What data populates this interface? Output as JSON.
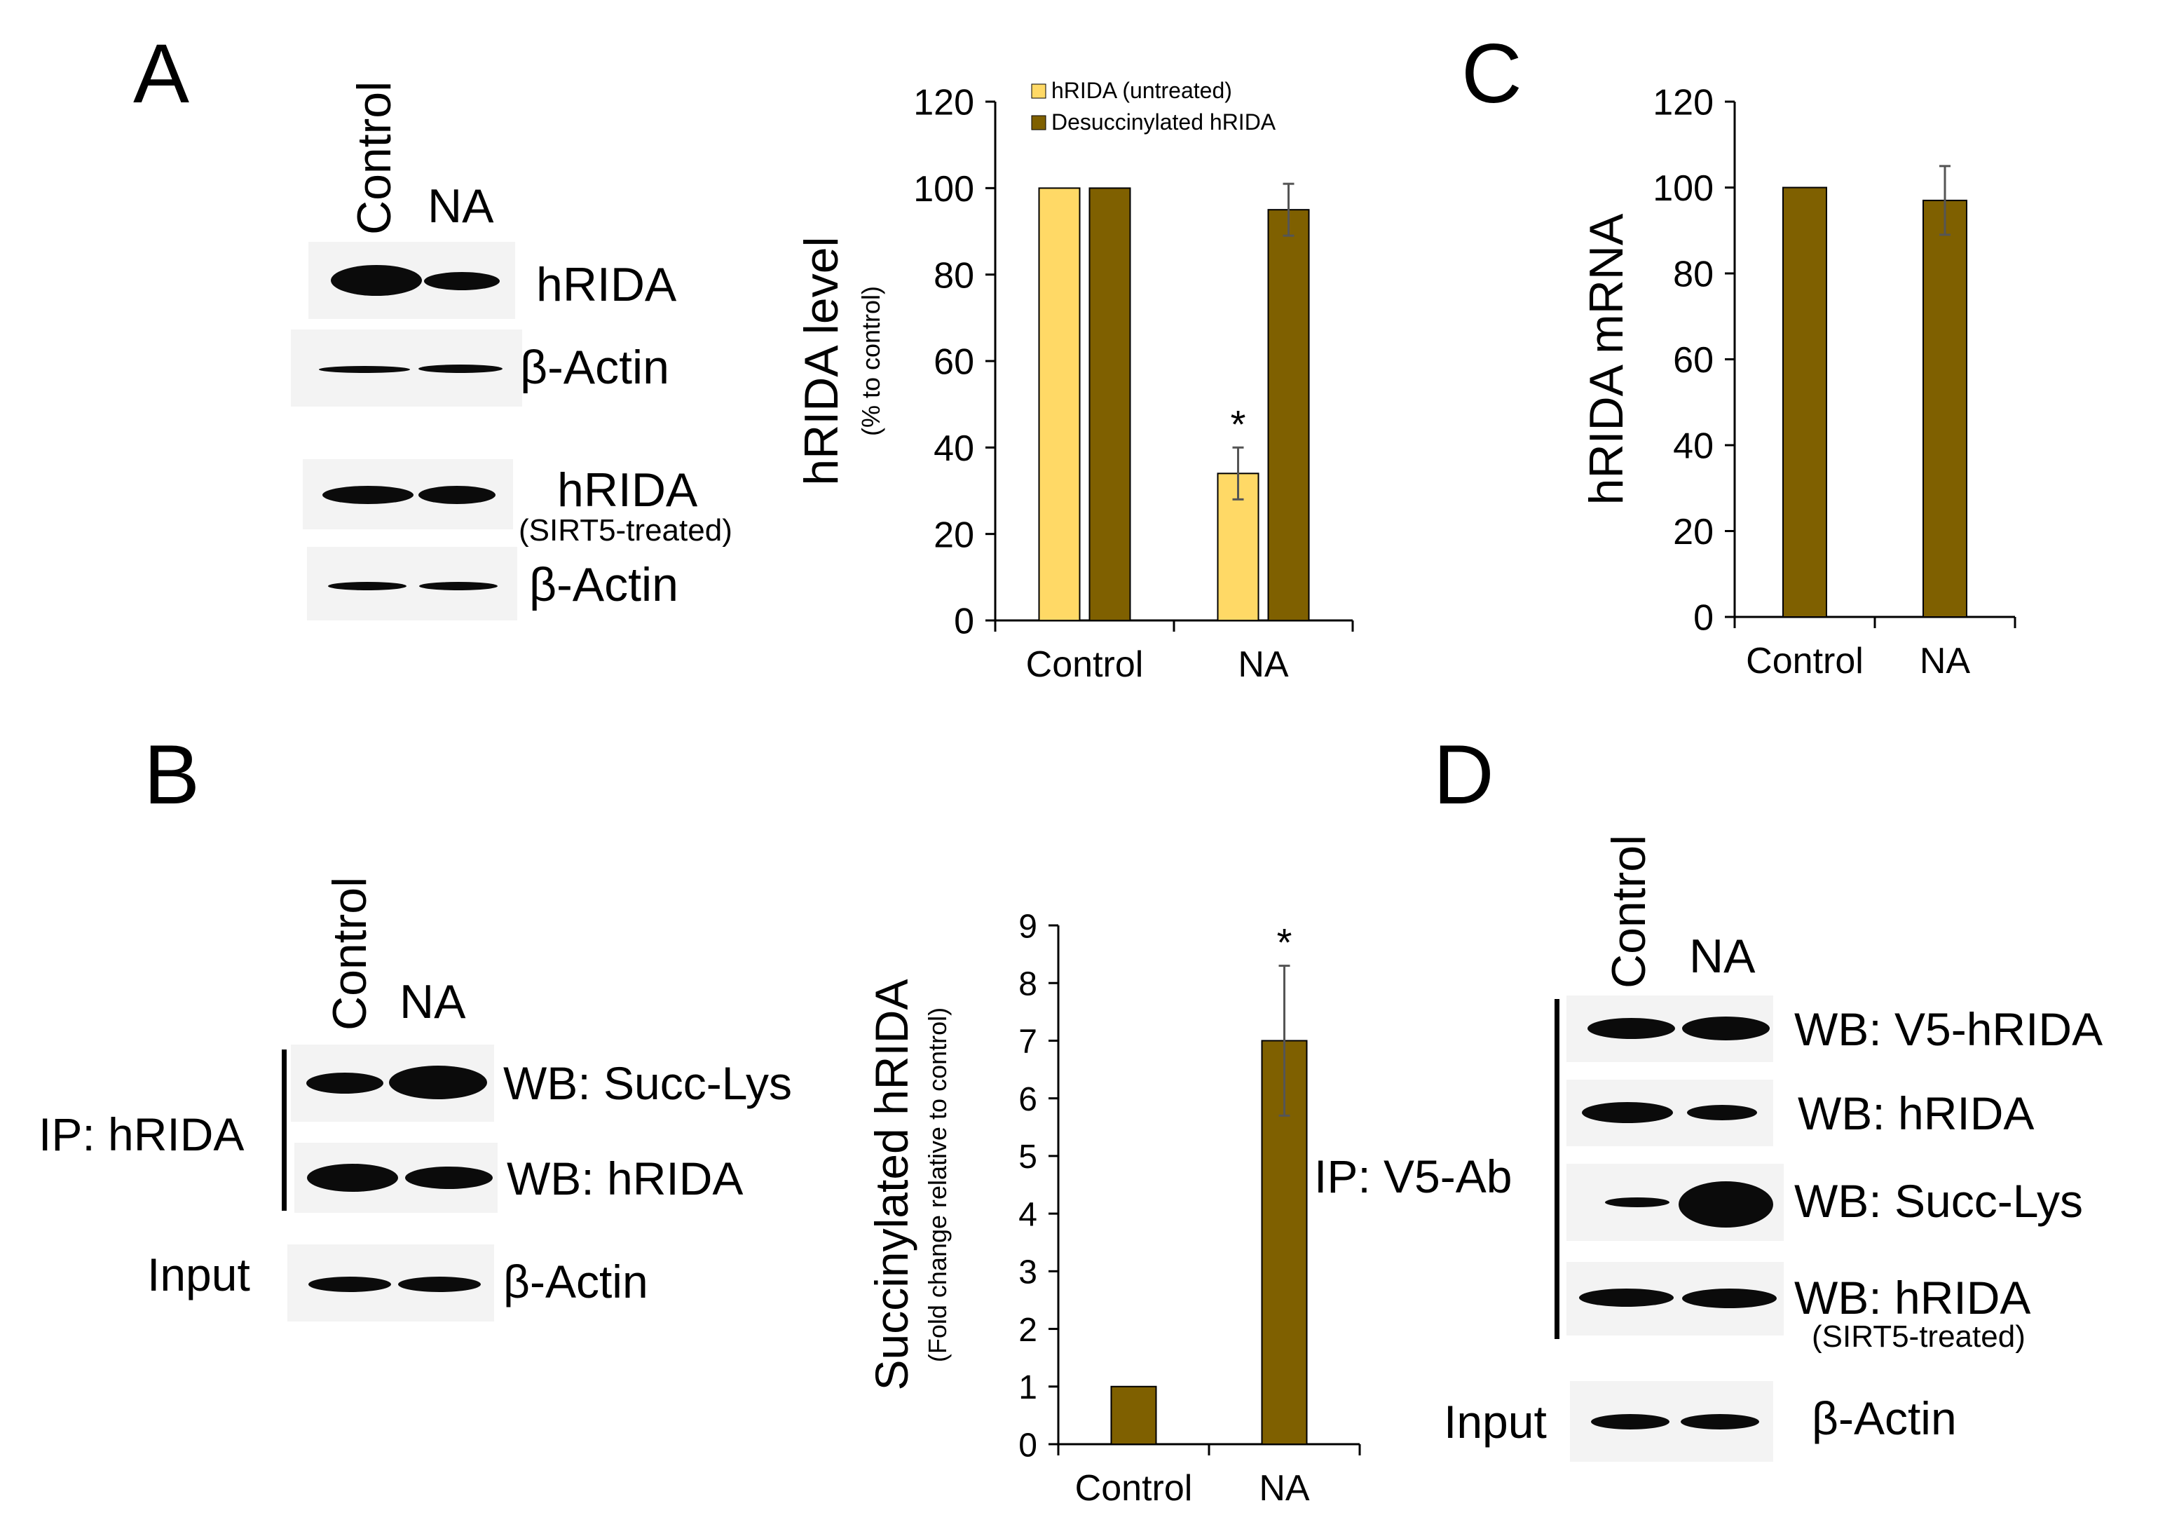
{
  "panels": {
    "A": {
      "letter": "A",
      "lanes": [
        "Control",
        "NA"
      ],
      "blots": [
        {
          "label": "hRIDA",
          "sub": ""
        },
        {
          "label": "β-Actin",
          "sub": ""
        },
        {
          "label": "hRIDA",
          "sub": "(SIRT5-treated)"
        },
        {
          "label": "β-Actin",
          "sub": ""
        }
      ]
    },
    "B": {
      "letter": "B",
      "lanes": [
        "Control",
        "NA"
      ],
      "ip_label": "IP: hRIDA",
      "input_label": "Input",
      "blots": [
        {
          "label": "WB: Succ-Lys"
        },
        {
          "label": "WB: hRIDA"
        },
        {
          "label": "β-Actin"
        }
      ]
    },
    "C": {
      "letter": "C"
    },
    "D": {
      "letter": "D",
      "lanes": [
        "Control",
        "NA"
      ],
      "ip_label": "IP: V5-Ab",
      "input_label": "Input",
      "blots": [
        {
          "label": "WB: V5-hRIDA",
          "sub": ""
        },
        {
          "label": "WB: hRIDA",
          "sub": ""
        },
        {
          "label": "WB: Succ-Lys",
          "sub": ""
        },
        {
          "label": "WB: hRIDA",
          "sub": "(SIRT5-treated)"
        },
        {
          "label": "β-Actin",
          "sub": ""
        }
      ]
    }
  },
  "chart_data": [
    {
      "id": "A",
      "type": "bar",
      "ylabel": "hRIDA level",
      "ylabel_sub": "(% to control)",
      "categories": [
        "Control",
        "NA"
      ],
      "ylim": [
        0,
        120
      ],
      "yticks": [
        0,
        20,
        40,
        60,
        80,
        100,
        120
      ],
      "series": [
        {
          "name": "hRIDA (untreated)",
          "color": "#FFD966",
          "values": [
            100,
            34
          ],
          "errors": [
            0,
            6
          ]
        },
        {
          "name": "Desuccinylated hRIDA",
          "color": "#7F6000",
          "values": [
            100,
            95
          ],
          "errors": [
            0,
            6
          ]
        }
      ],
      "annotations": [
        {
          "text": "*",
          "series": 0,
          "category": 1
        }
      ],
      "legend": "top-right"
    },
    {
      "id": "C",
      "type": "bar",
      "ylabel": "hRIDA mRNA",
      "categories": [
        "Control",
        "NA"
      ],
      "ylim": [
        0,
        120
      ],
      "yticks": [
        0,
        20,
        40,
        60,
        80,
        100,
        120
      ],
      "series": [
        {
          "color": "#7F6000",
          "values": [
            100,
            97
          ],
          "errors": [
            0,
            8
          ]
        }
      ]
    },
    {
      "id": "B",
      "type": "bar",
      "ylabel": "Succinylated hRIDA",
      "ylabel_sub": "(Fold change relative to control)",
      "categories": [
        "Control",
        "NA"
      ],
      "ylim": [
        0,
        9
      ],
      "yticks": [
        0,
        1,
        2,
        3,
        4,
        5,
        6,
        7,
        8,
        9
      ],
      "series": [
        {
          "color": "#7F6000",
          "values": [
            1,
            7
          ],
          "errors": [
            0,
            1.3
          ]
        }
      ],
      "annotations": [
        {
          "text": "*",
          "series": 0,
          "category": 1
        }
      ]
    }
  ]
}
